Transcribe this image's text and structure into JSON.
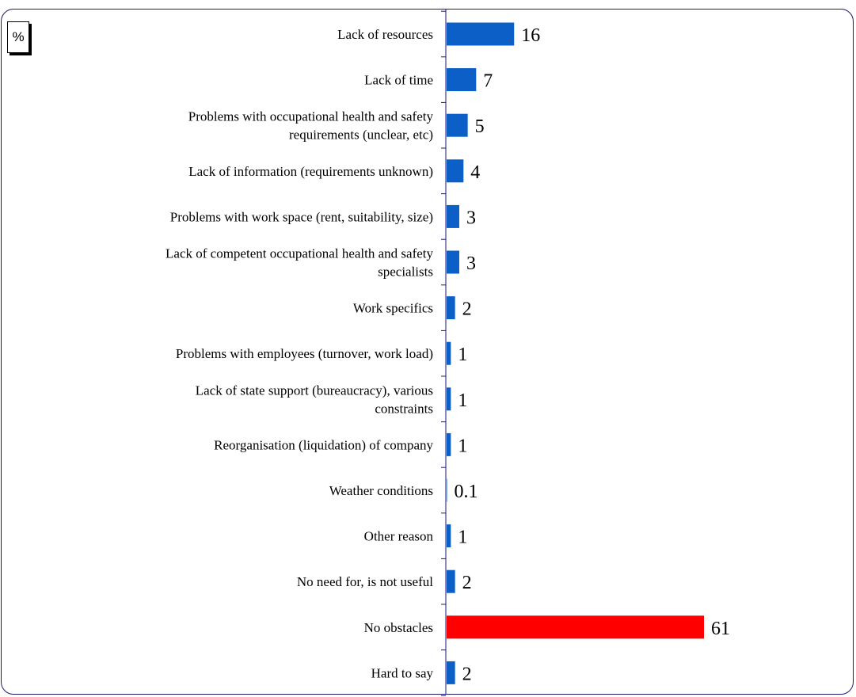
{
  "unit_label": "%",
  "chart_data": {
    "type": "bar",
    "orientation": "horizontal",
    "title": "",
    "xlabel": "",
    "ylabel": "",
    "unit": "%",
    "xlim": [
      0,
      61
    ],
    "grid": false,
    "legend": "none",
    "default_color": "#0b5fc7",
    "highlight_color": "#ff0000",
    "categories": [
      [
        "Lack of resources"
      ],
      [
        "Lack of time"
      ],
      [
        "Problems with occupational health and safety",
        "requirements (unclear, etc)"
      ],
      [
        "Lack of information (requirements unknown)"
      ],
      [
        "Problems with work space (rent, suitability, size)"
      ],
      [
        "Lack of competent occupational health and safety",
        "specialists"
      ],
      [
        "Work specifics"
      ],
      [
        "Problems with employees (turnover, work load)"
      ],
      [
        "Lack of state support (bureaucracy), various",
        "constraints"
      ],
      [
        "Reorganisation (liquidation) of company"
      ],
      [
        "Weather conditions"
      ],
      [
        "Other reason"
      ],
      [
        "No need for, is not useful"
      ],
      [
        "No obstacles"
      ],
      [
        "Hard to say"
      ]
    ],
    "values": [
      16,
      7,
      5,
      4,
      3,
      3,
      2,
      1,
      1,
      1,
      0.1,
      1,
      2,
      61,
      2
    ],
    "labels": [
      "16",
      "7",
      "5",
      "4",
      "3",
      "3",
      "2",
      "1",
      "1",
      "1",
      "0.1",
      "1",
      "2",
      "61",
      "2"
    ],
    "highlight_index": 13
  }
}
